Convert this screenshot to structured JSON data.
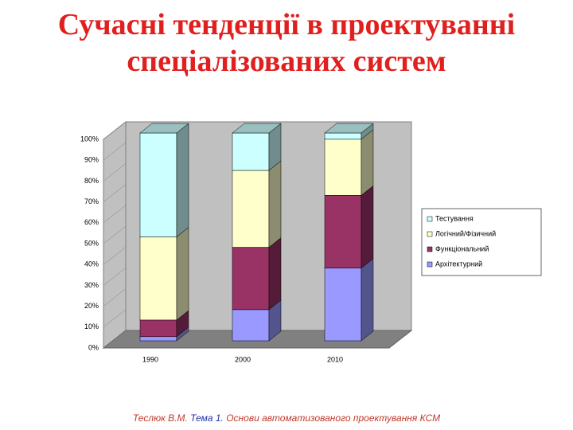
{
  "title": [
    "Сучасні тенденції в проектуванні",
    "спеціалізованих систем"
  ],
  "chart_data": {
    "type": "bar",
    "stacked": true,
    "categories": [
      "1990",
      "2000",
      "2010"
    ],
    "series": [
      {
        "name": "Архітектурний",
        "color": "#9999ff",
        "values": [
          2,
          15,
          35
        ]
      },
      {
        "name": "Функціональний",
        "color": "#993366",
        "values": [
          8,
          30,
          35
        ]
      },
      {
        "name": "Логічний/Фізичний",
        "color": "#ffffcc",
        "values": [
          40,
          37,
          27
        ]
      },
      {
        "name": "Тестування",
        "color": "#ccffff",
        "values": [
          50,
          18,
          3
        ]
      }
    ],
    "ylim": [
      0,
      100
    ],
    "yticks": [
      {
        "value": 0,
        "label": "0%"
      },
      {
        "value": 10,
        "label": "10%"
      },
      {
        "value": 20,
        "label": "20%"
      },
      {
        "value": 30,
        "label": "30%"
      },
      {
        "value": 40,
        "label": "40%"
      },
      {
        "value": 50,
        "label": "50%"
      },
      {
        "value": 60,
        "label": "60%"
      },
      {
        "value": 70,
        "label": "70%"
      },
      {
        "value": 80,
        "label": "80%"
      },
      {
        "value": 90,
        "label": "90%"
      },
      {
        "value": 100,
        "label": "100%"
      }
    ],
    "legend": "right"
  },
  "footer": {
    "author": "Теслюк В.М.",
    "topic": "Тема 1.",
    "course": "Основи автоматизованого проектування КСМ"
  }
}
